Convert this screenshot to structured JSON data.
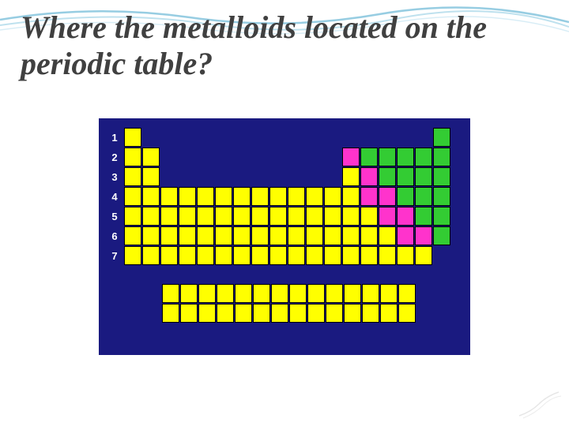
{
  "title": "Where the metalloids located on the periodic table?",
  "title_color": "#404040",
  "title_fontsize": 40,
  "background_color": "#ffffff",
  "wave_color": "#6bb8d6",
  "periodic_table": {
    "frame_bg": "#1a1a80",
    "row_labels": [
      "1",
      "2",
      "3",
      "4",
      "5",
      "6",
      "7"
    ],
    "row_label_color": "#ffffff",
    "cell_size": {
      "w": 22,
      "h": 24,
      "gap": 1
    },
    "colors": {
      "metal": "#ffff00",
      "metalloid": "#ff33cc",
      "nonmetal": "#33cc33",
      "border": "#000000"
    },
    "grid": [
      [
        1,
        0,
        0,
        0,
        0,
        0,
        0,
        0,
        0,
        0,
        0,
        0,
        0,
        0,
        0,
        0,
        0,
        3
      ],
      [
        1,
        1,
        0,
        0,
        0,
        0,
        0,
        0,
        0,
        0,
        0,
        0,
        2,
        3,
        3,
        3,
        3,
        3
      ],
      [
        1,
        1,
        0,
        0,
        0,
        0,
        0,
        0,
        0,
        0,
        0,
        0,
        1,
        2,
        3,
        3,
        3,
        3
      ],
      [
        1,
        1,
        1,
        1,
        1,
        1,
        1,
        1,
        1,
        1,
        1,
        1,
        1,
        2,
        2,
        3,
        3,
        3
      ],
      [
        1,
        1,
        1,
        1,
        1,
        1,
        1,
        1,
        1,
        1,
        1,
        1,
        1,
        1,
        2,
        2,
        3,
        3
      ],
      [
        1,
        1,
        1,
        1,
        1,
        1,
        1,
        1,
        1,
        1,
        1,
        1,
        1,
        1,
        1,
        2,
        2,
        3
      ],
      [
        1,
        1,
        1,
        1,
        1,
        1,
        1,
        1,
        1,
        1,
        1,
        1,
        1,
        1,
        1,
        1,
        1,
        0
      ]
    ],
    "lanthanide_rows": 2,
    "lanthanide_cols": 14,
    "lanthanide_color": "#ffff00"
  }
}
